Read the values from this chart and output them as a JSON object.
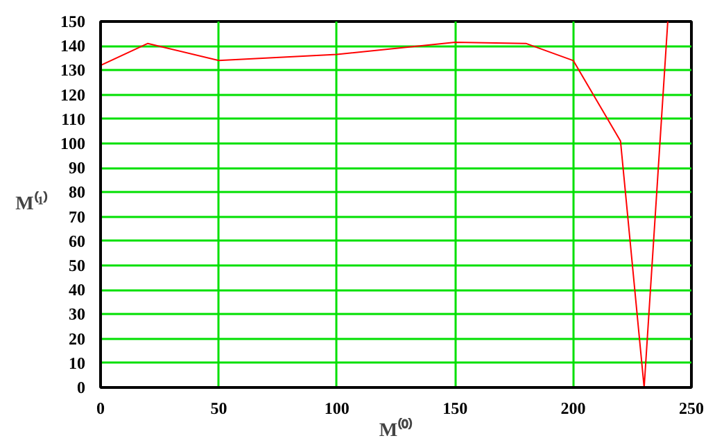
{
  "chart_data": {
    "type": "line",
    "xlabel": "M⁽⁰⁾",
    "ylabel": "M⁽¹⁾",
    "x": [
      0,
      20,
      50,
      100,
      150,
      180,
      200,
      220,
      230,
      240
    ],
    "series": [
      {
        "color": "#ff0000",
        "values": [
          132,
          141,
          134,
          136.5,
          141.5,
          141,
          134,
          101,
          0,
          150
        ]
      }
    ],
    "xlim": [
      0,
      250
    ],
    "ylim": [
      0,
      150
    ],
    "xticks": [
      0,
      50,
      100,
      150,
      200,
      250
    ],
    "yticks": [
      0,
      10,
      20,
      30,
      40,
      50,
      60,
      70,
      80,
      90,
      100,
      110,
      120,
      130,
      140,
      150
    ],
    "grid": true,
    "line_style": "solid"
  }
}
